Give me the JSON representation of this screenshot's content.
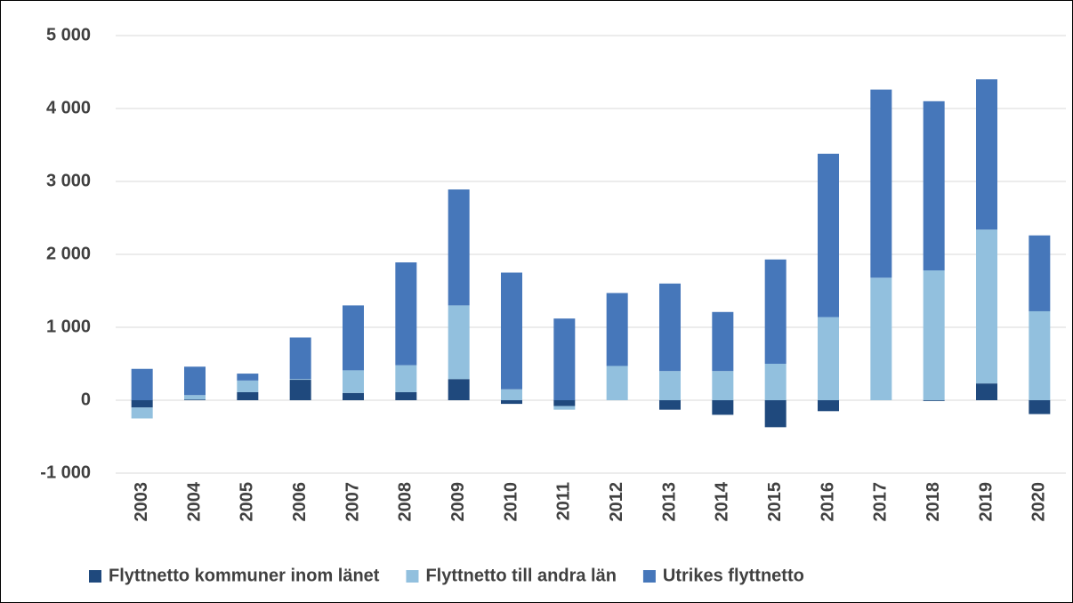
{
  "chart_data": {
    "type": "bar",
    "stacked": true,
    "categories": [
      "2003",
      "2004",
      "2005",
      "2006",
      "2007",
      "2008",
      "2009",
      "2010",
      "2011",
      "2012",
      "2013",
      "2014",
      "2015",
      "2016",
      "2017",
      "2018",
      "2019",
      "2020"
    ],
    "series": [
      {
        "name": "Flyttnetto kommuner inom länet",
        "color": "#1f497d",
        "values": [
          -100,
          10,
          110,
          280,
          100,
          110,
          290,
          -50,
          -80,
          0,
          -130,
          -200,
          -370,
          -150,
          0,
          -10,
          230,
          -190
        ]
      },
      {
        "name": "Flyttnetto till andra län",
        "color": "#92c0de",
        "values": [
          -150,
          60,
          160,
          10,
          310,
          370,
          1010,
          150,
          -50,
          470,
          400,
          400,
          500,
          1140,
          1680,
          1780,
          2110,
          1220
        ]
      },
      {
        "name": "Utrikes flyttnetto",
        "color": "#4677ba",
        "values": [
          430,
          390,
          95,
          570,
          890,
          1410,
          1590,
          1600,
          1120,
          1000,
          1200,
          810,
          1430,
          2240,
          2580,
          2320,
          2060,
          1040
        ]
      }
    ],
    "ylim": [
      -1000,
      5000
    ],
    "yticks": [
      {
        "value": -1000,
        "label": "-1 000"
      },
      0,
      {
        "value": 1000,
        "label": "1 000"
      },
      {
        "value": 2000,
        "label": "2 000"
      },
      {
        "value": 3000,
        "label": "3 000"
      },
      {
        "value": 4000,
        "label": "4 000"
      },
      {
        "value": 5000,
        "label": "5 000"
      }
    ],
    "grid": true,
    "legend": "bottom"
  }
}
